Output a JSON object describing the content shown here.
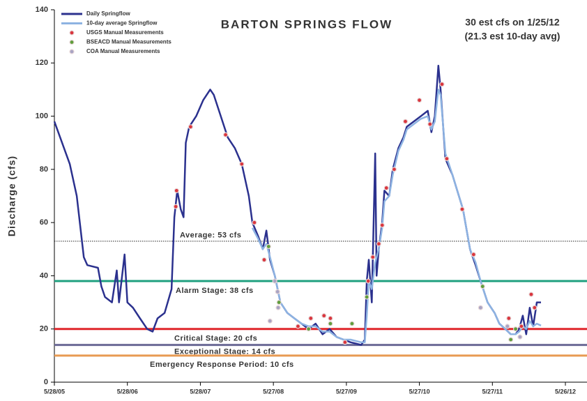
{
  "chart_data": {
    "type": "line",
    "title": "BARTON SPRINGS FLOW",
    "annotations": [
      "30 est cfs on 1/25/12",
      "(21.3 est 10-day avg)"
    ],
    "y_label": "Discharge (cfs)",
    "ylim": [
      0,
      140
    ],
    "yticks": [
      0,
      20,
      40,
      60,
      80,
      100,
      120,
      140
    ],
    "xlim": [
      "2005-05-28",
      "2012-09-11"
    ],
    "xticks": [
      {
        "value": "2005-05-28",
        "label": "5/28/05"
      },
      {
        "value": "2006-05-28",
        "label": "5/28/06"
      },
      {
        "value": "2007-05-28",
        "label": "5/28/07"
      },
      {
        "value": "2008-05-27",
        "label": "5/27/08"
      },
      {
        "value": "2009-05-27",
        "label": "5/27/09"
      },
      {
        "value": "2010-05-27",
        "label": "5/27/10"
      },
      {
        "value": "2011-05-27",
        "label": "5/27/11"
      },
      {
        "value": "2012-05-26",
        "label": "5/26/12"
      }
    ],
    "legend": "upper left",
    "reference_lines": [
      {
        "value": 53,
        "label": "Average: 53 cfs",
        "color": "#222222"
      },
      {
        "value": 38,
        "label": "Alarm Stage: 38 cfs",
        "color": "#1fa07f"
      },
      {
        "value": 20,
        "label": "Critical Stage: 20 cfs",
        "color": "#e0262b"
      },
      {
        "value": 14,
        "label": "Exceptional Stage: 14 cfs",
        "color": "#6b6a96"
      },
      {
        "value": 10,
        "label": "Emergency Response Period: 10 cfs",
        "color": "#e89a52"
      }
    ],
    "series": [
      {
        "name": "Daily Springflow",
        "type": "line",
        "color": "#2b318e",
        "x": [
          "2005-05-28",
          "2005-08-13",
          "2005-09-17",
          "2005-10-22",
          "2005-11-09",
          "2006-01-01",
          "2006-01-18",
          "2006-02-05",
          "2006-03-12",
          "2006-04-05",
          "2006-04-16",
          "2006-05-14",
          "2006-05-28",
          "2006-06-25",
          "2006-07-30",
          "2006-09-04",
          "2006-10-01",
          "2006-10-26",
          "2006-11-30",
          "2007-01-04",
          "2007-01-18",
          "2007-02-01",
          "2007-02-19",
          "2007-03-05",
          "2007-03-16",
          "2007-04-02",
          "2007-05-07",
          "2007-06-11",
          "2007-07-16",
          "2007-08-03",
          "2007-09-07",
          "2007-10-12",
          "2007-11-16",
          "2007-12-21",
          "2008-01-25",
          "2008-02-12",
          "2008-03-11",
          "2008-04-04",
          "2008-04-22",
          "2008-05-10",
          "2008-06-03",
          "2008-07-01",
          "2008-08-05",
          "2008-09-09",
          "2008-10-15",
          "2008-11-19",
          "2008-12-24",
          "2009-01-28",
          "2009-03-04",
          "2009-04-08",
          "2009-05-13",
          "2009-06-17",
          "2009-08-09",
          "2009-08-27",
          "2009-09-06",
          "2009-09-16",
          "2009-10-01",
          "2009-10-18",
          "2009-10-25",
          "2009-11-05",
          "2009-11-22",
          "2009-12-03",
          "2009-12-27",
          "2010-01-14",
          "2010-02-11",
          "2010-03-08",
          "2010-03-25",
          "2010-04-29",
          "2010-06-03",
          "2010-07-08",
          "2010-07-26",
          "2010-08-12",
          "2010-08-30",
          "2010-09-10",
          "2010-10-04",
          "2010-11-08",
          "2010-12-31",
          "2011-02-04",
          "2011-03-04",
          "2011-03-29",
          "2011-05-03",
          "2011-06-07",
          "2011-07-01",
          "2011-07-30",
          "2011-08-27",
          "2011-09-20",
          "2011-10-08",
          "2011-10-26",
          "2011-11-12",
          "2011-11-30",
          "2011-12-17",
          "2012-01-04",
          "2012-01-25"
        ],
        "values": [
          98,
          82,
          70,
          47,
          44,
          43,
          36,
          32,
          30,
          42,
          30,
          48,
          30,
          28,
          24,
          20,
          19,
          24,
          26,
          35,
          62,
          72,
          65,
          62,
          90,
          96,
          100,
          106,
          110,
          108,
          100,
          92,
          88,
          82,
          70,
          60,
          55,
          50,
          57,
          46,
          40,
          30,
          26,
          24,
          22,
          20,
          22,
          18,
          20,
          17,
          16,
          15,
          14,
          16,
          38,
          46,
          30,
          86,
          40,
          50,
          60,
          72,
          70,
          80,
          88,
          92,
          96,
          98,
          100,
          102,
          94,
          100,
          119,
          110,
          84,
          78,
          65,
          50,
          44,
          38,
          30,
          26,
          22,
          20,
          18,
          18,
          20,
          25,
          18,
          28,
          21,
          30,
          30
        ]
      },
      {
        "name": "10-day average Springflow",
        "type": "line",
        "color": "#8db3e2",
        "x": [
          "2008-02-12",
          "2008-03-11",
          "2008-04-04",
          "2008-04-22",
          "2008-05-10",
          "2008-06-03",
          "2008-07-01",
          "2008-08-05",
          "2008-09-09",
          "2008-10-15",
          "2008-11-19",
          "2008-12-24",
          "2009-01-28",
          "2009-03-04",
          "2009-04-08",
          "2009-05-13",
          "2009-06-17",
          "2009-08-09",
          "2009-08-27",
          "2009-09-06",
          "2009-09-16",
          "2009-10-01",
          "2009-10-18",
          "2009-11-05",
          "2009-11-22",
          "2009-12-03",
          "2009-12-27",
          "2010-01-14",
          "2010-02-11",
          "2010-03-08",
          "2010-03-25",
          "2010-04-29",
          "2010-06-03",
          "2010-07-08",
          "2010-07-26",
          "2010-08-12",
          "2010-08-30",
          "2010-09-10",
          "2010-10-04",
          "2010-11-08",
          "2010-12-31",
          "2011-02-04",
          "2011-03-04",
          "2011-03-29",
          "2011-05-03",
          "2011-06-07",
          "2011-07-01",
          "2011-07-30",
          "2011-08-27",
          "2011-09-20",
          "2011-10-08",
          "2011-10-26",
          "2011-11-12",
          "2011-11-30",
          "2011-12-17",
          "2012-01-04",
          "2012-01-25"
        ],
        "values": [
          58,
          54,
          50,
          52,
          47,
          40,
          30,
          26,
          24,
          22,
          21,
          21,
          19,
          19,
          17,
          16,
          16,
          15,
          15,
          25,
          38,
          35,
          45,
          50,
          58,
          68,
          70,
          78,
          87,
          91,
          95,
          97,
          99,
          100,
          95,
          98,
          110,
          108,
          86,
          78,
          65,
          50,
          45,
          38,
          30,
          26,
          22,
          20,
          18,
          18,
          19,
          21,
          20,
          23,
          21,
          22,
          21.3
        ]
      },
      {
        "name": "USGS Manual Measurements",
        "type": "scatter",
        "color": "#d9363e",
        "x": [
          "2007-01-29",
          "2007-01-25",
          "2007-04-09",
          "2007-10-01",
          "2007-12-21",
          "2008-02-22",
          "2008-04-11",
          "2008-09-27",
          "2008-11-30",
          "2009-02-04",
          "2009-03-08",
          "2009-05-20",
          "2009-09-13",
          "2009-10-06",
          "2009-11-05",
          "2009-11-22",
          "2009-12-13",
          "2010-01-21",
          "2010-03-18",
          "2010-05-27",
          "2010-07-19",
          "2010-09-17",
          "2010-10-11",
          "2010-12-27",
          "2011-02-22",
          "2011-08-17",
          "2011-10-19",
          "2011-12-07",
          "2011-12-24"
        ],
        "values": [
          72,
          66,
          96,
          93,
          82,
          60,
          46,
          21,
          24,
          25,
          24,
          15,
          38,
          47,
          52,
          59,
          73,
          80,
          98,
          106,
          97,
          112,
          84,
          65,
          48,
          24,
          21,
          33,
          28
        ]
      },
      {
        "name": "BSEACD Manual Measurements",
        "type": "scatter",
        "color": "#5f9e3c",
        "x": [
          "2008-05-03",
          "2008-06-24",
          "2008-11-19",
          "2009-03-08",
          "2009-06-24",
          "2009-09-06",
          "2011-04-08",
          "2011-08-27",
          "2011-09-20"
        ],
        "values": [
          51,
          30,
          20,
          22,
          22,
          32,
          36,
          16,
          20
        ]
      },
      {
        "name": "COA Manual Measurements",
        "type": "scatter",
        "color": "#a9a4c4",
        "x": [
          "2008-06-03",
          "2008-06-17",
          "2008-06-20",
          "2008-05-10",
          "2011-03-29",
          "2011-08-10",
          "2011-10-12"
        ],
        "values": [
          38,
          34,
          28,
          23,
          28,
          21,
          17
        ]
      }
    ]
  }
}
